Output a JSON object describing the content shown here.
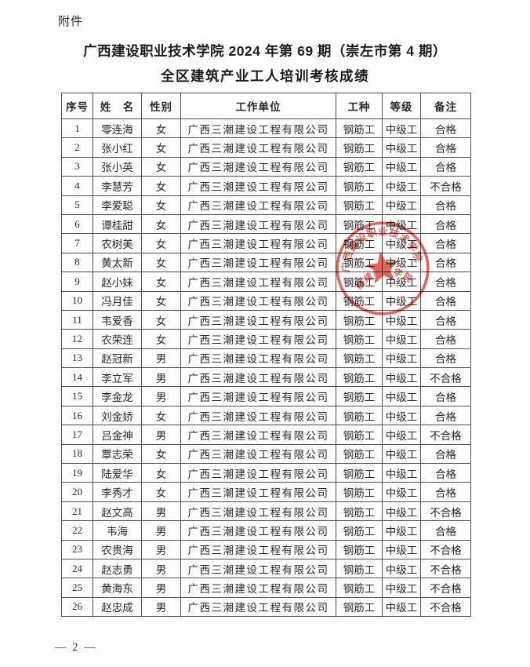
{
  "page": {
    "attachment_label": "附件",
    "title_line1": "广西建设职业技术学院 2024 年第 69 期（崇左市第 4 期）",
    "title_line2": "全区建筑产业工人培训考核成绩",
    "page_number": "— 2 —"
  },
  "table": {
    "headers": [
      "序号",
      "姓　名",
      "性别",
      "工作单位",
      "工种",
      "等级",
      "备注"
    ],
    "rows": [
      [
        "1",
        "零连海",
        "女",
        "广西三潮建设工程有限公司",
        "钢筋工",
        "中级工",
        "合格"
      ],
      [
        "2",
        "张小红",
        "女",
        "广西三潮建设工程有限公司",
        "钢筋工",
        "中级工",
        "合格"
      ],
      [
        "3",
        "张小英",
        "女",
        "广西三潮建设工程有限公司",
        "钢筋工",
        "中级工",
        "合格"
      ],
      [
        "4",
        "李慧芳",
        "女",
        "广西三潮建设工程有限公司",
        "钢筋工",
        "中级工",
        "不合格"
      ],
      [
        "5",
        "李爱聪",
        "女",
        "广西三潮建设工程有限公司",
        "钢筋工",
        "中级工",
        "合格"
      ],
      [
        "6",
        "谭桂甜",
        "女",
        "广西三潮建设工程有限公司",
        "钢筋工",
        "中级工",
        "合格"
      ],
      [
        "7",
        "农树美",
        "女",
        "广西三潮建设工程有限公司",
        "钢筋工",
        "中级工",
        "合格"
      ],
      [
        "8",
        "黄太新",
        "女",
        "广西三潮建设工程有限公司",
        "钢筋工",
        "中级工",
        "合格"
      ],
      [
        "9",
        "赵小妹",
        "女",
        "广西三潮建设工程有限公司",
        "钢筋工",
        "中级工",
        "合格"
      ],
      [
        "10",
        "冯月佳",
        "女",
        "广西三潮建设工程有限公司",
        "钢筋工",
        "中级工",
        "合格"
      ],
      [
        "11",
        "韦爱香",
        "女",
        "广西三潮建设工程有限公司",
        "钢筋工",
        "中级工",
        "合格"
      ],
      [
        "12",
        "农荣连",
        "女",
        "广西三潮建设工程有限公司",
        "钢筋工",
        "中级工",
        "合格"
      ],
      [
        "13",
        "赵冠新",
        "男",
        "广西三潮建设工程有限公司",
        "钢筋工",
        "中级工",
        "合格"
      ],
      [
        "14",
        "李立军",
        "男",
        "广西三潮建设工程有限公司",
        "钢筋工",
        "中级工",
        "不合格"
      ],
      [
        "15",
        "李金龙",
        "男",
        "广西三潮建设工程有限公司",
        "钢筋工",
        "中级工",
        "合格"
      ],
      [
        "16",
        "刘金娇",
        "女",
        "广西三潮建设工程有限公司",
        "钢筋工",
        "中级工",
        "合格"
      ],
      [
        "17",
        "吕金神",
        "男",
        "广西三潮建设工程有限公司",
        "钢筋工",
        "中级工",
        "不合格"
      ],
      [
        "18",
        "覃志荣",
        "女",
        "广西三潮建设工程有限公司",
        "钢筋工",
        "中级工",
        "合格"
      ],
      [
        "19",
        "陆爱华",
        "女",
        "广西三潮建设工程有限公司",
        "钢筋工",
        "中级工",
        "合格"
      ],
      [
        "20",
        "李秀才",
        "女",
        "广西三潮建设工程有限公司",
        "钢筋工",
        "中级工",
        "合格"
      ],
      [
        "21",
        "赵文高",
        "男",
        "广西三潮建设工程有限公司",
        "钢筋工",
        "中级工",
        "不合格"
      ],
      [
        "22",
        "韦海",
        "男",
        "广西三潮建设工程有限公司",
        "钢筋工",
        "中级工",
        "合格"
      ],
      [
        "23",
        "农贵海",
        "男",
        "广西三潮建设工程有限公司",
        "钢筋工",
        "中级工",
        "不合格"
      ],
      [
        "24",
        "赵志勇",
        "男",
        "广西三潮建设工程有限公司",
        "钢筋工",
        "中级工",
        "不合格"
      ],
      [
        "25",
        "黄海东",
        "男",
        "广西三潮建设工程有限公司",
        "钢筋工",
        "中级工",
        "不合格"
      ],
      [
        "26",
        "赵忠成",
        "男",
        "广西三潮建设工程有限公司",
        "钢筋工",
        "中级工",
        "不合格"
      ]
    ]
  },
  "seal": {
    "top_text": "广西建设职业技术学院",
    "bottom_text": "继续教育学院",
    "color": "#d8453a"
  }
}
